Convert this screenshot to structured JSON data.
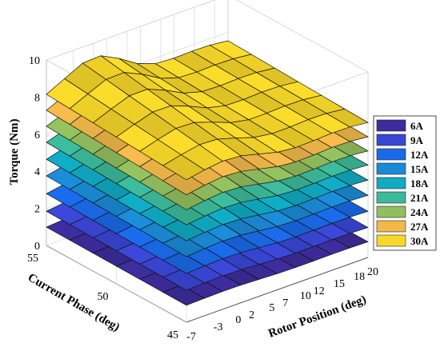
{
  "chart_data": {
    "type": "surface3d",
    "xlabel": "Rotor Position (deg)",
    "ylabel": "Current Phase (deg)",
    "zlabel": "Torque (Nm)",
    "x_ticks": [
      "-7",
      "-3",
      "0",
      "2",
      "5",
      "7",
      "10",
      "12",
      "15",
      "18",
      "20"
    ],
    "y_ticks": [
      "45",
      "50",
      "55"
    ],
    "z_ticks": [
      "0",
      "2",
      "4",
      "6",
      "8",
      "10"
    ],
    "x_range": [
      -7,
      20
    ],
    "y_range": [
      45,
      55
    ],
    "zlim": [
      0,
      10
    ],
    "grid": true,
    "legend_position": "right",
    "series": [
      {
        "name": "6A",
        "color": "#3d2c9c",
        "base": 0.9,
        "ripple": 0.18
      },
      {
        "name": "9A",
        "color": "#3a47d6",
        "base": 1.7,
        "ripple": 0.28
      },
      {
        "name": "12A",
        "color": "#1a6ae8",
        "base": 2.6,
        "ripple": 0.38
      },
      {
        "name": "15A",
        "color": "#1b8ad6",
        "base": 3.5,
        "ripple": 0.5
      },
      {
        "name": "18A",
        "color": "#10aac2",
        "base": 4.35,
        "ripple": 0.6
      },
      {
        "name": "21A",
        "color": "#3bb99a",
        "base": 5.2,
        "ripple": 0.72
      },
      {
        "name": "24A",
        "color": "#92bf5e",
        "base": 6.0,
        "ripple": 0.85
      },
      {
        "name": "27A",
        "color": "#f2b84a",
        "base": 6.8,
        "ripple": 0.98
      },
      {
        "name": "30A",
        "color": "#f7d82a",
        "base": 7.6,
        "ripple": 1.1
      }
    ]
  }
}
